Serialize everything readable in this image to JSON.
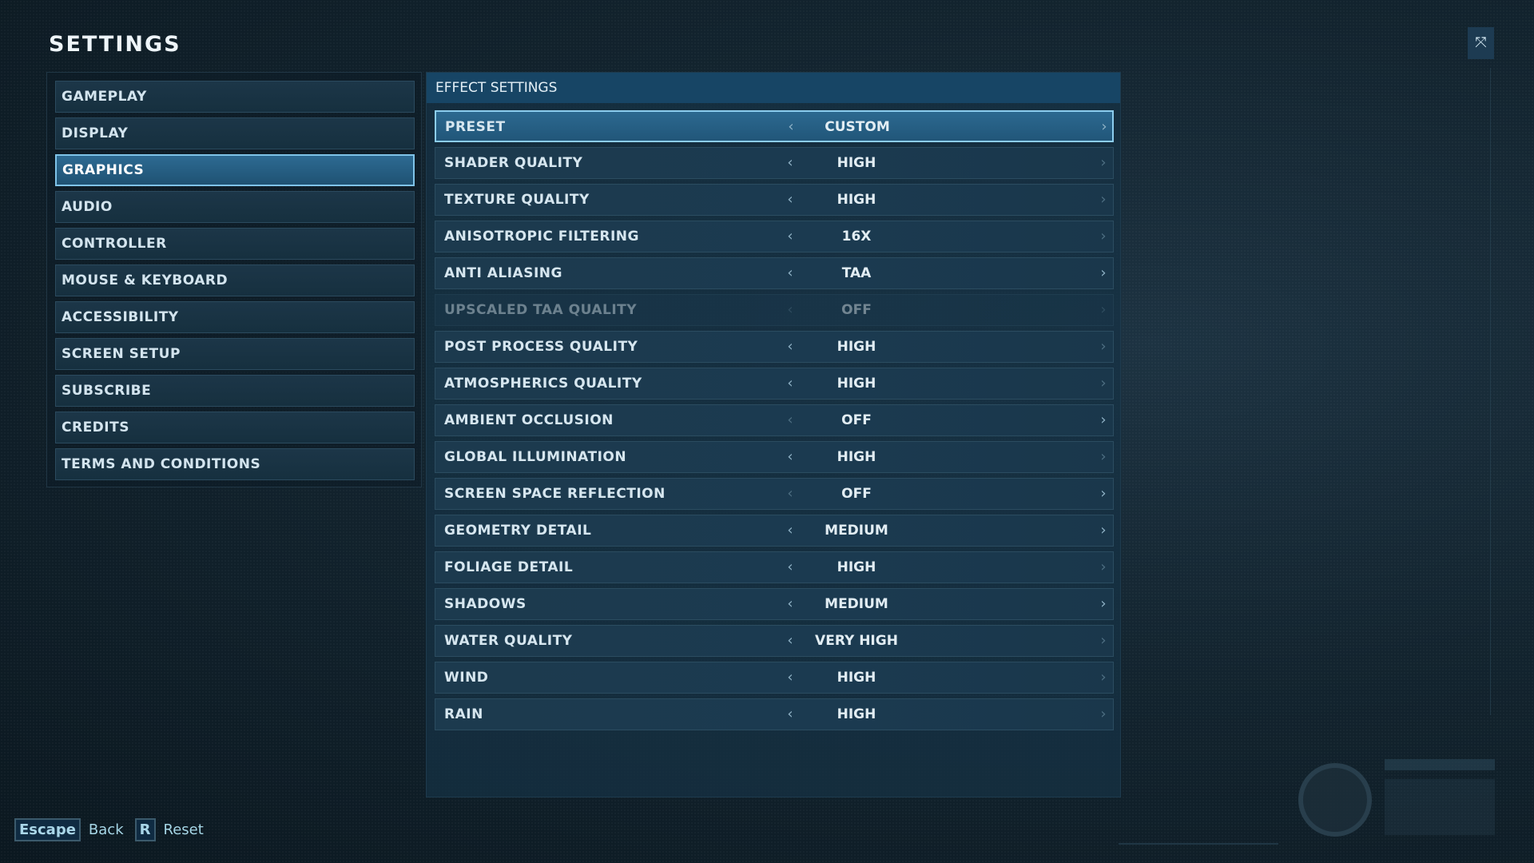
{
  "title": "SETTINGS",
  "sidebar": {
    "items": [
      {
        "label": "GAMEPLAY",
        "active": false
      },
      {
        "label": "DISPLAY",
        "active": false
      },
      {
        "label": "GRAPHICS",
        "active": true
      },
      {
        "label": "AUDIO",
        "active": false
      },
      {
        "label": "CONTROLLER",
        "active": false
      },
      {
        "label": "MOUSE & KEYBOARD",
        "active": false
      },
      {
        "label": "ACCESSIBILITY",
        "active": false
      },
      {
        "label": "SCREEN SETUP",
        "active": false
      },
      {
        "label": "SUBSCRIBE",
        "active": false
      },
      {
        "label": "CREDITS",
        "active": false
      },
      {
        "label": "TERMS AND CONDITIONS",
        "active": false
      }
    ]
  },
  "main": {
    "header": "EFFECT SETTINGS",
    "rows": [
      {
        "label": "PRESET",
        "value": "CUSTOM",
        "state": "focused",
        "left": true,
        "right": true
      },
      {
        "label": "SHADER QUALITY",
        "value": "HIGH",
        "state": "normal",
        "left": true,
        "right": false
      },
      {
        "label": "TEXTURE QUALITY",
        "value": "HIGH",
        "state": "normal",
        "left": true,
        "right": false
      },
      {
        "label": "ANISOTROPIC FILTERING",
        "value": "16X",
        "state": "normal",
        "left": true,
        "right": false
      },
      {
        "label": "ANTI ALIASING",
        "value": "TAA",
        "state": "normal",
        "left": true,
        "right": true
      },
      {
        "label": "UPSCALED TAA QUALITY",
        "value": "OFF",
        "state": "disabled",
        "left": false,
        "right": false
      },
      {
        "label": "POST PROCESS QUALITY",
        "value": "HIGH",
        "state": "normal",
        "left": true,
        "right": false
      },
      {
        "label": "ATMOSPHERICS QUALITY",
        "value": "HIGH",
        "state": "normal",
        "left": true,
        "right": false
      },
      {
        "label": "AMBIENT OCCLUSION",
        "value": "OFF",
        "state": "normal",
        "left": false,
        "right": true
      },
      {
        "label": "GLOBAL ILLUMINATION",
        "value": "HIGH",
        "state": "normal",
        "left": true,
        "right": false
      },
      {
        "label": "SCREEN SPACE REFLECTION",
        "value": "OFF",
        "state": "normal",
        "left": false,
        "right": true
      },
      {
        "label": "GEOMETRY DETAIL",
        "value": "MEDIUM",
        "state": "normal",
        "left": true,
        "right": true
      },
      {
        "label": "FOLIAGE DETAIL",
        "value": "HIGH",
        "state": "normal",
        "left": true,
        "right": false
      },
      {
        "label": "SHADOWS",
        "value": "MEDIUM",
        "state": "normal",
        "left": true,
        "right": true
      },
      {
        "label": "WATER QUALITY",
        "value": "VERY HIGH",
        "state": "normal",
        "left": true,
        "right": false
      },
      {
        "label": "WIND",
        "value": "HIGH",
        "state": "normal",
        "left": true,
        "right": false
      },
      {
        "label": "RAIN",
        "value": "HIGH",
        "state": "normal",
        "left": true,
        "right": false
      }
    ]
  },
  "footer": {
    "escape_key": "Escape",
    "escape_label": "Back",
    "reset_key": "R",
    "reset_label": "Reset"
  },
  "icons": {
    "left": "chevron-left-icon",
    "right": "chevron-right-icon",
    "window": "maximize-icon",
    "logo": "jurassic-world-logo"
  },
  "colors": {
    "accent": "#7fc3e8",
    "active_bg": "#2d6a92",
    "panel": "#174565"
  }
}
